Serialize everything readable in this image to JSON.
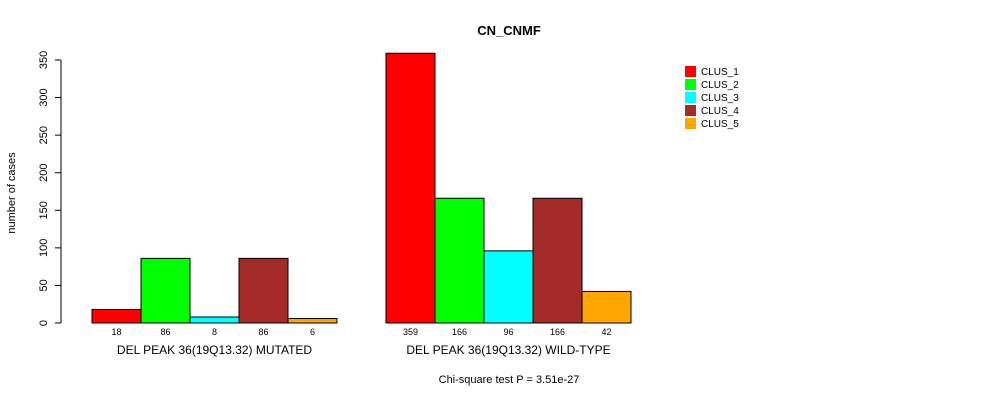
{
  "chart_data": {
    "type": "bar",
    "title": "CN_CNMF",
    "ylabel": "number of cases",
    "xlabel": "",
    "ylim": [
      0,
      350
    ],
    "yticks": [
      0,
      50,
      100,
      150,
      200,
      250,
      300,
      350
    ],
    "groups": [
      {
        "label": "DEL PEAK 36(19Q13.32) MUTATED",
        "values": [
          18,
          86,
          8,
          86,
          6
        ]
      },
      {
        "label": "DEL PEAK 36(19Q13.32) WILD-TYPE",
        "values": [
          359,
          166,
          96,
          166,
          42
        ]
      }
    ],
    "series": [
      {
        "name": "CLUS_1",
        "color": "#ff0000"
      },
      {
        "name": "CLUS_2",
        "color": "#00ff00"
      },
      {
        "name": "CLUS_3",
        "color": "#00ffff"
      },
      {
        "name": "CLUS_4",
        "color": "#a52a2a"
      },
      {
        "name": "CLUS_5",
        "color": "#ffa500"
      }
    ],
    "legend_position": "top-right",
    "footnote": "Chi-square test P = 3.51e-27"
  }
}
